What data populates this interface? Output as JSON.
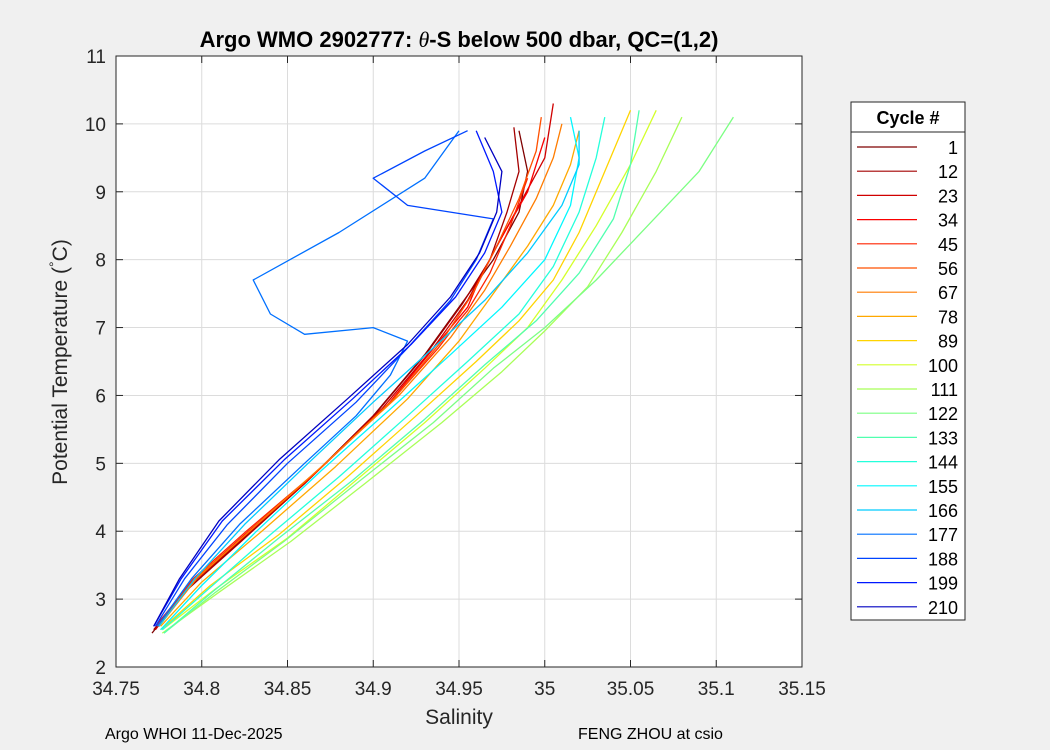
{
  "footer": {
    "left": "Argo WHOI 11-Dec-2025",
    "right": "FENG ZHOU at csio"
  },
  "chart_data": {
    "type": "line",
    "title_parts": [
      "Argo WMO 2902777: ",
      "θ",
      "-S below 500 dbar,  QC=(1,2)"
    ],
    "xlabel": "Salinity",
    "ylabel_parts": [
      "Potential Temperature (",
      "°",
      "C)"
    ],
    "xlim": [
      34.75,
      35.15
    ],
    "ylim": [
      2,
      11
    ],
    "xticks": [
      34.75,
      34.8,
      34.85,
      34.9,
      34.95,
      35,
      35.05,
      35.1,
      35.15
    ],
    "xtick_labels": [
      "34.75",
      "34.8",
      "34.85",
      "34.9",
      "34.95",
      "35",
      "35.05",
      "35.1",
      "35.15"
    ],
    "yticks": [
      2,
      3,
      4,
      5,
      6,
      7,
      8,
      9,
      10,
      11
    ],
    "ytick_labels": [
      "2",
      "3",
      "4",
      "5",
      "6",
      "7",
      "8",
      "9",
      "10",
      "11"
    ],
    "grid": true,
    "legend_title": "Cycle #",
    "legend_position": "outside-right",
    "colormap": "jet",
    "series": [
      {
        "name": "1",
        "color": "#7f0000",
        "x": [
          34.771,
          34.79,
          34.82,
          34.86,
          34.9,
          34.93,
          34.95,
          34.97,
          34.985,
          34.99,
          34.985
        ],
        "y": [
          2.5,
          3.1,
          3.8,
          4.7,
          5.7,
          6.6,
          7.3,
          8.0,
          8.7,
          9.3,
          9.9
        ]
      },
      {
        "name": "12",
        "color": "#a40000",
        "x": [
          34.772,
          34.792,
          34.823,
          34.862,
          34.902,
          34.932,
          34.952,
          34.968,
          34.978,
          34.985,
          34.982
        ],
        "y": [
          2.55,
          3.15,
          3.85,
          4.75,
          5.75,
          6.65,
          7.35,
          8.0,
          8.7,
          9.3,
          9.95
        ]
      },
      {
        "name": "23",
        "color": "#d00000",
        "x": [
          34.773,
          34.793,
          34.824,
          34.864,
          34.905,
          34.935,
          34.955,
          34.97,
          34.985,
          35.0,
          35.005
        ],
        "y": [
          2.55,
          3.2,
          3.9,
          4.8,
          5.8,
          6.7,
          7.4,
          8.1,
          8.8,
          9.5,
          10.3
        ]
      },
      {
        "name": "34",
        "color": "#fa0000",
        "x": [
          34.773,
          34.794,
          34.825,
          34.866,
          34.908,
          34.937,
          34.955,
          34.96,
          34.972,
          34.99,
          35.0
        ],
        "y": [
          2.6,
          3.25,
          3.95,
          4.85,
          5.85,
          6.75,
          7.3,
          7.6,
          8.2,
          9.0,
          9.8
        ]
      },
      {
        "name": "45",
        "color": "#ff2400",
        "x": [
          34.774,
          34.795,
          34.826,
          34.868,
          34.91,
          34.938,
          34.95,
          34.955,
          34.968,
          34.98,
          34.99
        ],
        "y": [
          2.6,
          3.3,
          4.0,
          4.9,
          5.9,
          6.7,
          7.1,
          7.25,
          7.8,
          8.5,
          9.2
        ]
      },
      {
        "name": "56",
        "color": "#ff5000",
        "x": [
          34.775,
          34.796,
          34.828,
          34.87,
          34.912,
          34.94,
          34.958,
          34.972,
          34.985,
          34.995,
          34.998
        ],
        "y": [
          2.6,
          3.3,
          4.0,
          4.95,
          5.95,
          6.8,
          7.5,
          8.2,
          8.9,
          9.6,
          10.1
        ]
      },
      {
        "name": "67",
        "color": "#ff7c00",
        "x": [
          34.775,
          34.797,
          34.83,
          34.872,
          34.915,
          34.945,
          34.965,
          34.98,
          34.995,
          35.005,
          35.01
        ],
        "y": [
          2.6,
          3.3,
          4.05,
          5.0,
          6.0,
          6.85,
          7.55,
          8.2,
          8.9,
          9.5,
          10.0
        ]
      },
      {
        "name": "78",
        "color": "#ffa800",
        "x": [
          34.776,
          34.8,
          34.835,
          34.878,
          34.92,
          34.95,
          34.97,
          34.99,
          35.005,
          35.015,
          35.02
        ],
        "y": [
          2.6,
          3.25,
          4.0,
          4.95,
          5.95,
          6.8,
          7.5,
          8.2,
          8.8,
          9.4,
          9.9
        ]
      },
      {
        "name": "89",
        "color": "#ffd400",
        "x": [
          34.776,
          34.805,
          34.845,
          34.885,
          34.925,
          34.96,
          34.985,
          35.005,
          35.02,
          35.035,
          35.05
        ],
        "y": [
          2.55,
          3.2,
          3.95,
          4.8,
          5.7,
          6.5,
          7.1,
          7.7,
          8.4,
          9.3,
          10.2
        ]
      },
      {
        "name": "100",
        "color": "#d4ff2b",
        "x": [
          34.777,
          34.808,
          34.85,
          34.89,
          34.93,
          34.965,
          34.99,
          35.01,
          35.03,
          35.05,
          35.065
        ],
        "y": [
          2.55,
          3.15,
          3.9,
          4.75,
          5.6,
          6.4,
          7.0,
          7.7,
          8.5,
          9.4,
          10.2
        ]
      },
      {
        "name": "111",
        "color": "#a8ff57",
        "x": [
          34.777,
          34.81,
          34.852,
          34.895,
          34.94,
          34.975,
          35.0,
          35.025,
          35.045,
          35.065,
          35.08
        ],
        "y": [
          2.5,
          3.1,
          3.85,
          4.7,
          5.6,
          6.35,
          6.95,
          7.6,
          8.4,
          9.3,
          10.1
        ]
      },
      {
        "name": "122",
        "color": "#7cff83",
        "x": [
          34.778,
          34.808,
          34.848,
          34.89,
          34.935,
          34.97,
          35.0,
          35.03,
          35.06,
          35.09,
          35.11
        ],
        "y": [
          2.5,
          3.1,
          3.85,
          4.7,
          5.6,
          6.4,
          7.0,
          7.7,
          8.5,
          9.3,
          10.1
        ]
      },
      {
        "name": "133",
        "color": "#50ffaf",
        "x": [
          34.778,
          34.806,
          34.845,
          34.888,
          34.93,
          34.965,
          34.995,
          35.02,
          35.04,
          35.05,
          35.055
        ],
        "y": [
          2.5,
          3.1,
          3.9,
          4.75,
          5.65,
          6.45,
          7.1,
          7.8,
          8.6,
          9.4,
          10.2
        ]
      },
      {
        "name": "144",
        "color": "#24ffdb",
        "x": [
          34.777,
          34.804,
          34.84,
          34.88,
          34.92,
          34.955,
          34.985,
          35.005,
          35.02,
          35.03,
          35.035
        ],
        "y": [
          2.55,
          3.15,
          3.95,
          4.8,
          5.7,
          6.5,
          7.2,
          7.9,
          8.7,
          9.5,
          10.1
        ]
      },
      {
        "name": "155",
        "color": "#00f8ff",
        "x": [
          34.776,
          34.8,
          34.832,
          34.87,
          34.91,
          34.945,
          34.975,
          35.0,
          35.015,
          35.02,
          35.015
        ],
        "y": [
          2.55,
          3.2,
          4.0,
          4.9,
          5.8,
          6.6,
          7.3,
          8.0,
          8.8,
          9.5,
          10.1
        ]
      },
      {
        "name": "166",
        "color": "#00ccff",
        "x": [
          34.775,
          34.796,
          34.825,
          34.862,
          34.9,
          34.935,
          34.965,
          34.99,
          35.01,
          35.02,
          35.02
        ],
        "y": [
          2.6,
          3.3,
          4.1,
          5.0,
          5.9,
          6.7,
          7.4,
          8.1,
          8.8,
          9.4,
          9.9
        ]
      },
      {
        "name": "177",
        "color": "#0070ff",
        "x": [
          34.774,
          34.794,
          34.822,
          34.86,
          34.89,
          34.91,
          34.92,
          34.9,
          34.86,
          34.84,
          34.83,
          34.88,
          34.93,
          34.95
        ],
        "y": [
          2.6,
          3.3,
          4.1,
          5.0,
          5.7,
          6.3,
          6.8,
          7.0,
          6.9,
          7.2,
          7.7,
          8.4,
          9.2,
          9.9
        ]
      },
      {
        "name": "188",
        "color": "#0044ff",
        "x": [
          34.773,
          34.79,
          34.815,
          34.85,
          34.89,
          34.92,
          34.945,
          34.96,
          34.97,
          34.92,
          34.9,
          34.93,
          34.955
        ],
        "y": [
          2.6,
          3.3,
          4.1,
          5.0,
          5.9,
          6.7,
          7.4,
          8.0,
          8.6,
          8.8,
          9.2,
          9.6,
          9.9
        ]
      },
      {
        "name": "199",
        "color": "#0018ff",
        "x": [
          34.772,
          34.788,
          34.812,
          34.848,
          34.888,
          34.922,
          34.948,
          34.965,
          34.975,
          34.97,
          34.96
        ],
        "y": [
          2.6,
          3.3,
          4.15,
          5.05,
          5.95,
          6.75,
          7.45,
          8.1,
          8.7,
          9.3,
          9.9
        ]
      },
      {
        "name": "210",
        "color": "#0000c0",
        "x": [
          34.772,
          34.787,
          34.81,
          34.845,
          34.885,
          34.92,
          34.945,
          34.962,
          34.972,
          34.975,
          34.965
        ],
        "y": [
          2.6,
          3.3,
          4.15,
          5.05,
          5.95,
          6.75,
          7.45,
          8.1,
          8.7,
          9.3,
          9.8
        ]
      }
    ]
  }
}
